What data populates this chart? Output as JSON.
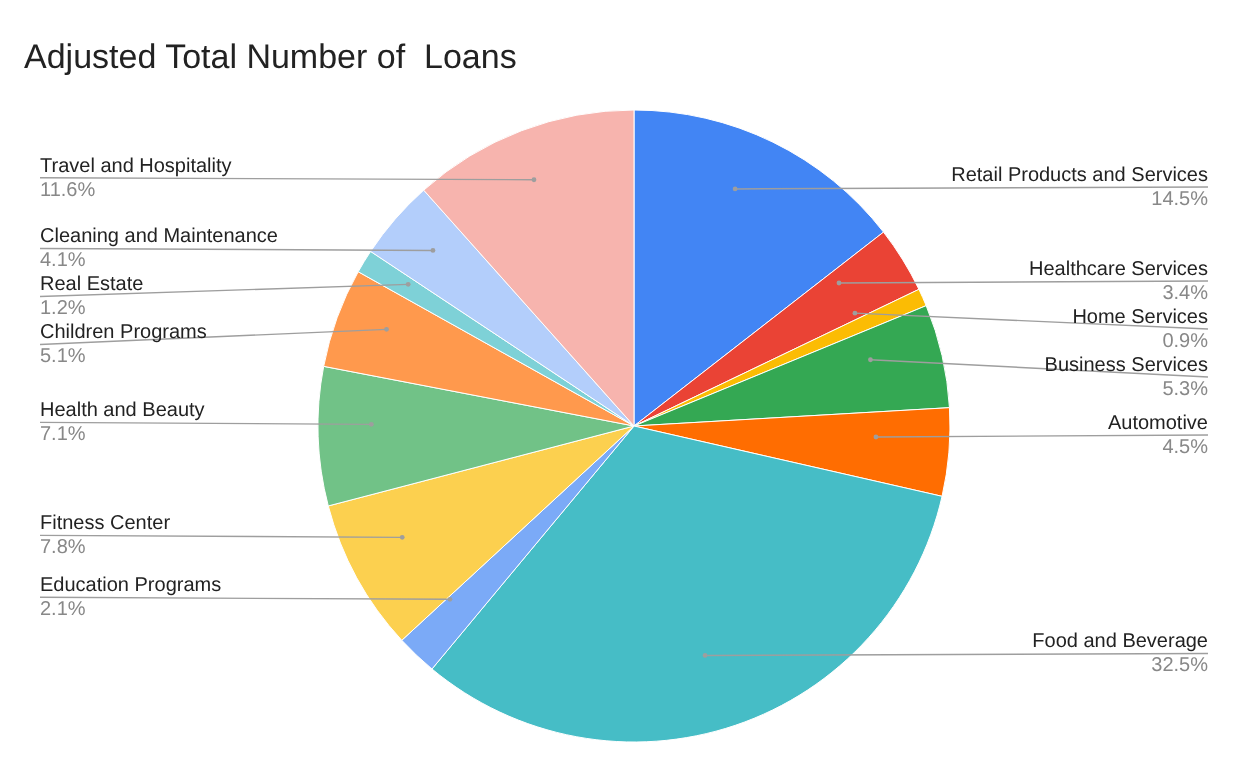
{
  "chart_data": {
    "type": "pie",
    "title": "Adjusted Total Number of  Loans",
    "categories": [
      "Retail Products and Services",
      "Healthcare Services",
      "Home Services",
      "Business Services",
      "Automotive",
      "Food and Beverage",
      "Education Programs",
      "Fitness Center",
      "Health and Beauty",
      "Children Programs",
      "Real Estate",
      "Cleaning and Maintenance",
      "Travel and Hospitality"
    ],
    "values": [
      14.5,
      3.4,
      0.9,
      5.3,
      4.5,
      32.5,
      2.1,
      7.8,
      7.1,
      5.1,
      1.2,
      4.1,
      11.6
    ],
    "value_labels": [
      "14.5%",
      "3.4%",
      "0.9%",
      "5.3%",
      "4.5%",
      "32.5%",
      "2.1%",
      "7.8%",
      "7.1%",
      "5.1%",
      "1.2%",
      "4.1%",
      "11.6%"
    ],
    "colors": [
      "#4285f4",
      "#ea4335",
      "#fbbc04",
      "#34a853",
      "#ff6d01",
      "#46bdc6",
      "#7baaf7",
      "#fcd04f",
      "#71c287",
      "#ff994d",
      "#7ed1d7",
      "#b3cefb",
      "#f7b4ae"
    ],
    "legend": false
  }
}
